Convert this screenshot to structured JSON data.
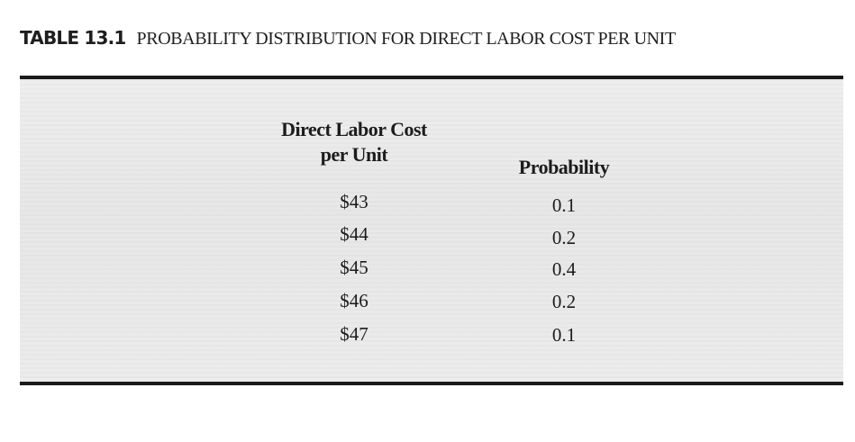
{
  "caption": {
    "label": "TABLE 13.1",
    "title": "PROBABILITY DISTRIBUTION FOR DIRECT LABOR COST PER UNIT"
  },
  "table": {
    "headers": {
      "cost_line1": "Direct Labor Cost",
      "cost_line2": "per Unit",
      "probability": "Probability"
    },
    "rows": [
      {
        "cost": "$43",
        "probability": "0.1"
      },
      {
        "cost": "$44",
        "probability": "0.2"
      },
      {
        "cost": "$45",
        "probability": "0.4"
      },
      {
        "cost": "$46",
        "probability": "0.2"
      },
      {
        "cost": "$47",
        "probability": "0.1"
      }
    ]
  }
}
